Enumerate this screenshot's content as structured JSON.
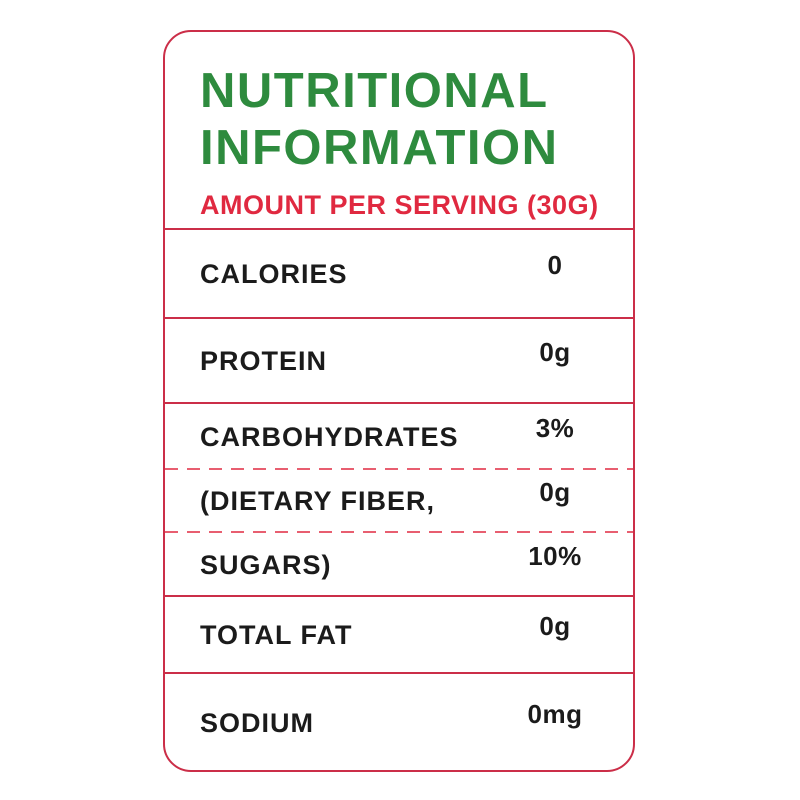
{
  "header": {
    "title_line1": "NUTRITIONAL",
    "title_line2": "INFORMATION",
    "subtitle": "AMOUNT PER SERVING (30G)"
  },
  "table": {
    "rows": [
      {
        "label": "CALORIES",
        "value": "0"
      },
      {
        "label": "PROTEIN",
        "value": "0g"
      },
      {
        "label": "CARBOHYDRATES",
        "value": "3%"
      },
      {
        "label": "(DIETARY FIBER,",
        "value": "0g"
      },
      {
        "label": "SUGARS)",
        "value": "10%"
      },
      {
        "label": "TOTAL FAT",
        "value": "0g"
      },
      {
        "label": "SODIUM",
        "value": "0mg"
      }
    ]
  },
  "colors": {
    "green": "#2e8b3e",
    "red": "#e02940",
    "border-red": "#cb2e48",
    "ink": "#1b1b1b"
  }
}
